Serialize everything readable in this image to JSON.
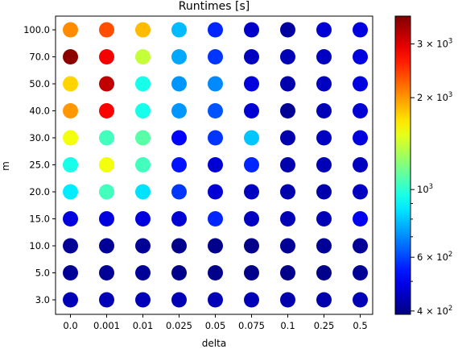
{
  "chart_data": {
    "type": "scatter",
    "title": "Runtimes [s]",
    "xlabel": "delta",
    "ylabel": "m",
    "x_categories": [
      "0.0",
      "0.001",
      "0.01",
      "0.025",
      "0.05",
      "0.075",
      "0.1",
      "0.25",
      "0.5"
    ],
    "y_categories": [
      "3.0",
      "5.0",
      "10.0",
      "15.0",
      "20.0",
      "25.0",
      "30.0",
      "40.0",
      "50.0",
      "70.0",
      "100.0"
    ],
    "values": [
      [
        440,
        440,
        440,
        440,
        440,
        440,
        430,
        430,
        440
      ],
      [
        410,
        410,
        410,
        400,
        400,
        400,
        400,
        400,
        410
      ],
      [
        410,
        410,
        410,
        400,
        400,
        400,
        410,
        410,
        410
      ],
      [
        480,
        480,
        480,
        470,
        560,
        450,
        440,
        440,
        500
      ],
      [
        870,
        1050,
        850,
        580,
        470,
        450,
        430,
        430,
        450
      ],
      [
        950,
        1550,
        1050,
        540,
        470,
        560,
        430,
        440,
        450
      ],
      [
        1550,
        1050,
        1100,
        520,
        580,
        800,
        430,
        450,
        480
      ],
      [
        2000,
        2800,
        950,
        720,
        620,
        470,
        410,
        440,
        470
      ],
      [
        1750,
        3200,
        950,
        720,
        700,
        480,
        430,
        450,
        480
      ],
      [
        3600,
        2850,
        1400,
        750,
        580,
        450,
        440,
        450,
        480
      ],
      [
        2050,
        2350,
        1850,
        780,
        560,
        460,
        420,
        470,
        480
      ]
    ],
    "colorbar": {
      "scale": "log",
      "colormap": "jet",
      "range": [
        390,
        3700
      ],
      "major_ticks": [
        {
          "value": 400,
          "mantissa": "4",
          "base": "10",
          "exp": "2"
        },
        {
          "value": 600,
          "mantissa": "6",
          "base": "10",
          "exp": "2"
        },
        {
          "value": 1000,
          "mantissa": "",
          "base": "10",
          "exp": "3"
        },
        {
          "value": 2000,
          "mantissa": "2",
          "base": "10",
          "exp": "3"
        },
        {
          "value": 3000,
          "mantissa": "3",
          "base": "10",
          "exp": "3"
        }
      ],
      "minor_ticks": [
        500,
        700,
        800,
        900
      ]
    },
    "grid": false
  }
}
